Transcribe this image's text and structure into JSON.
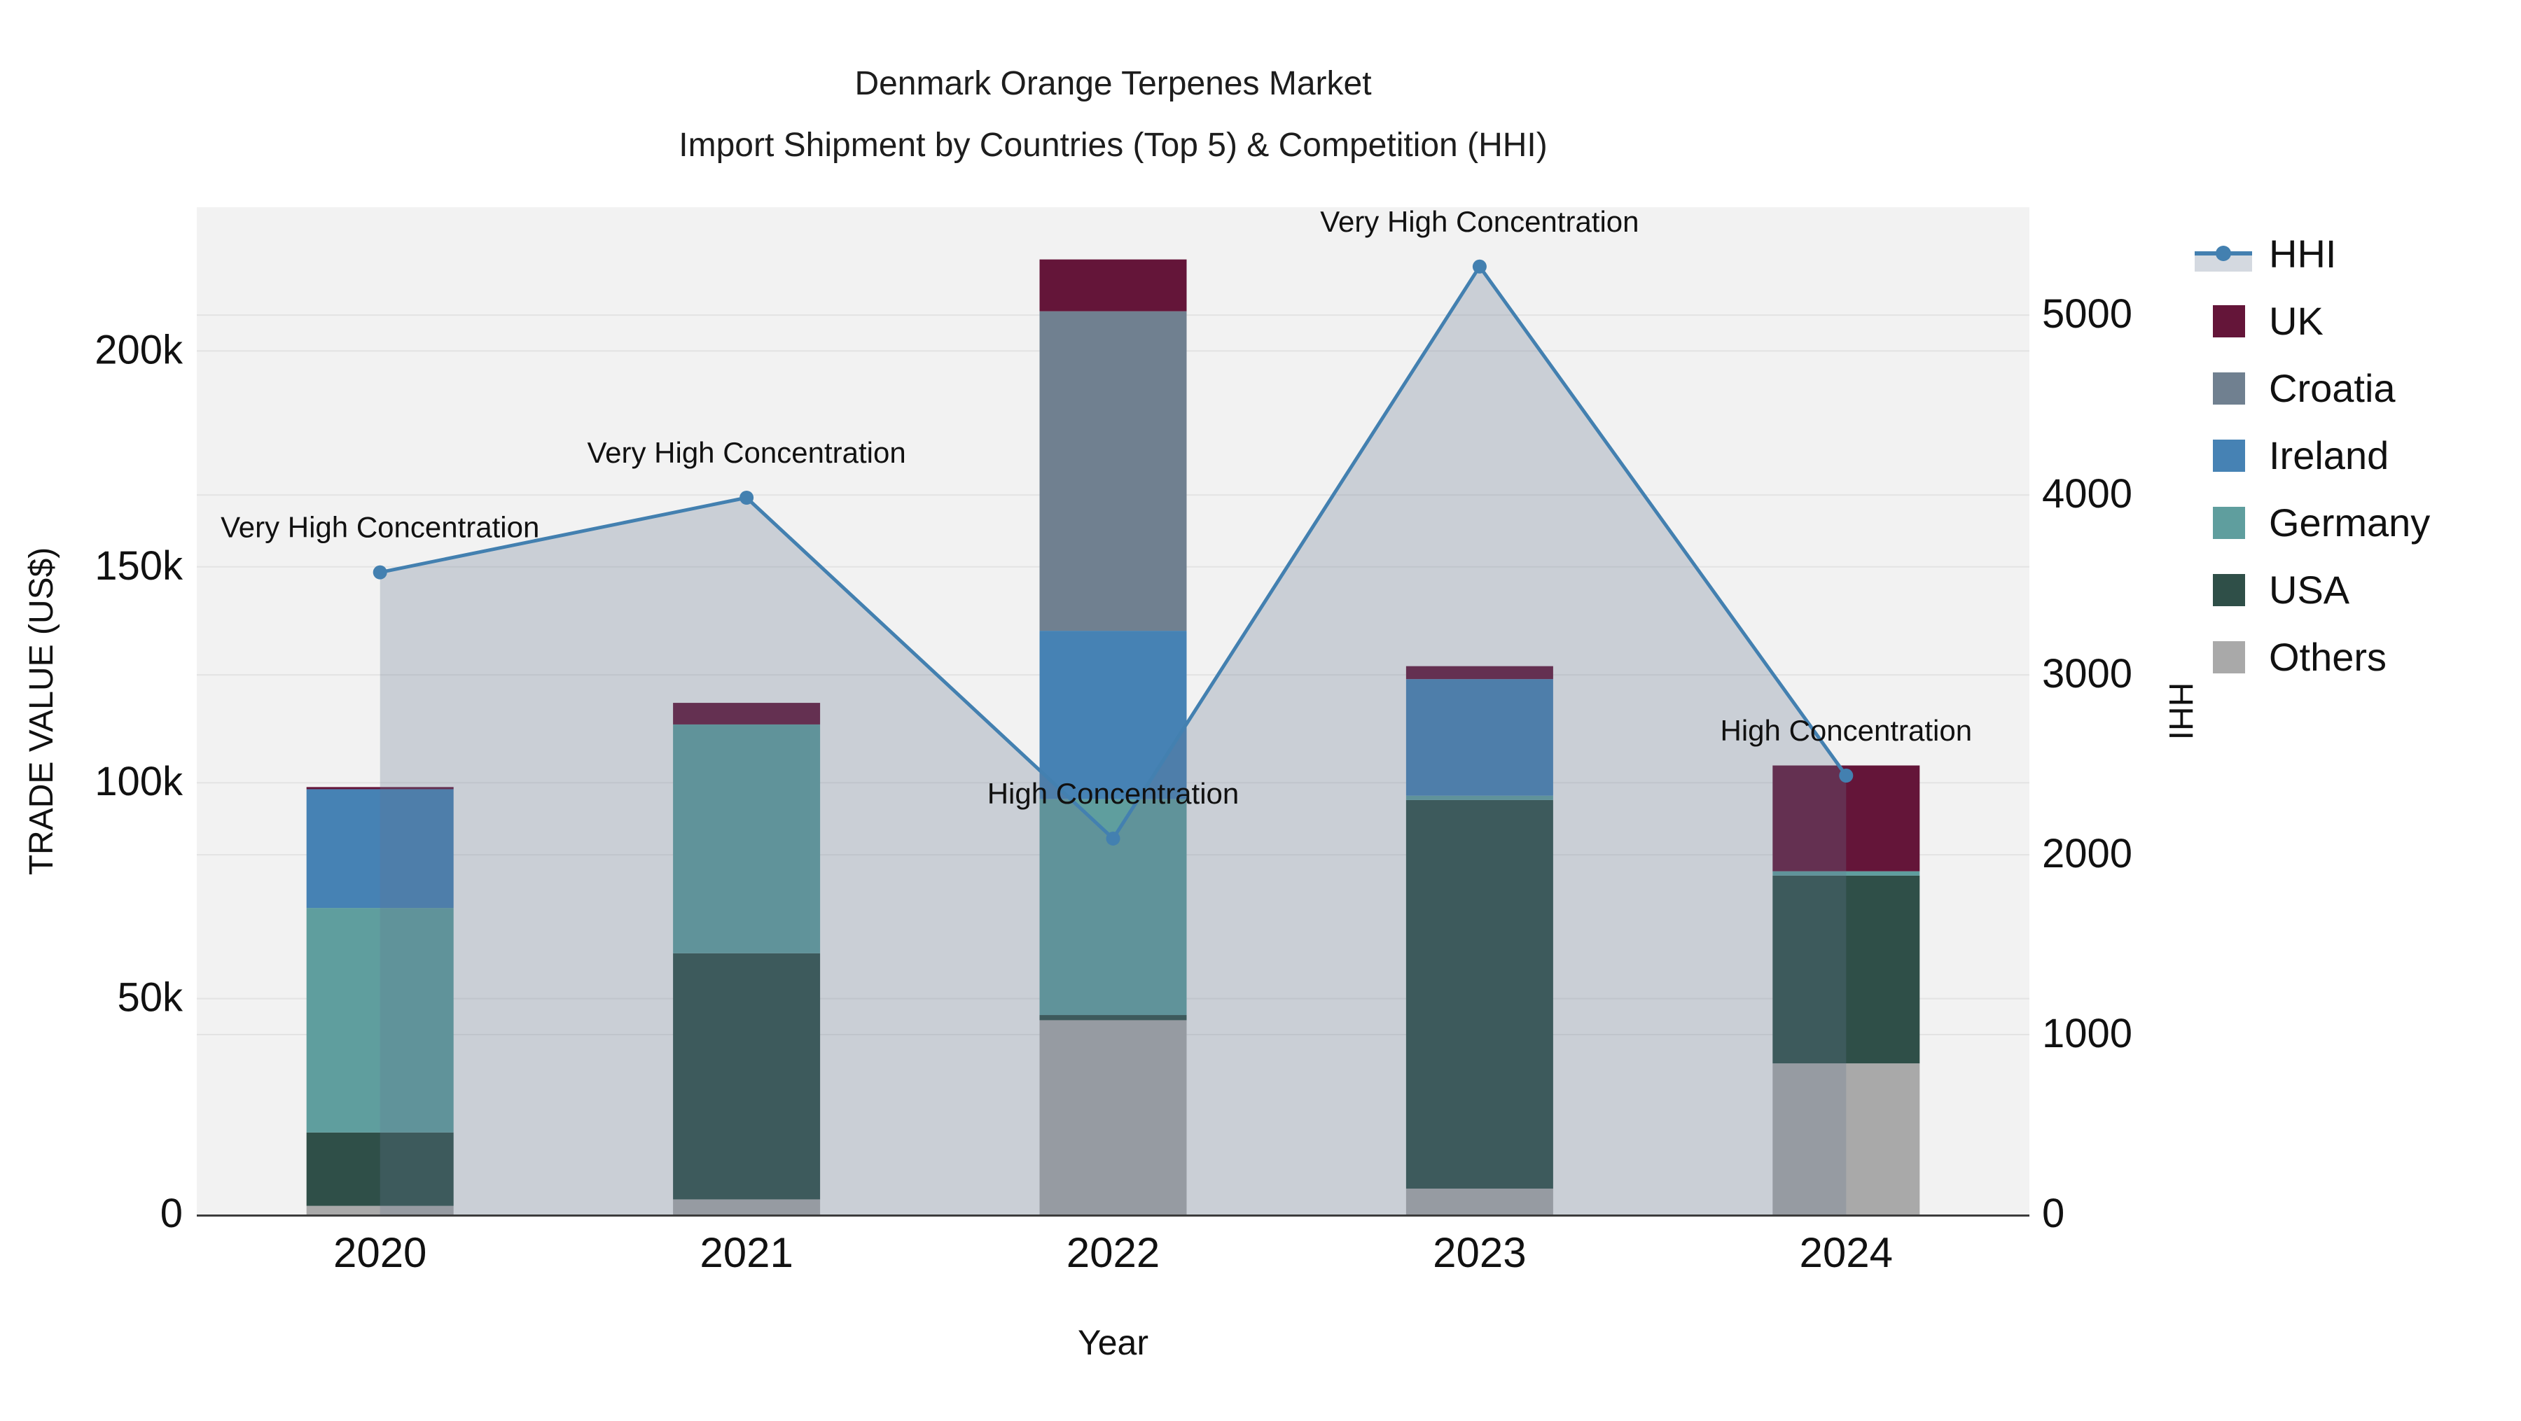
{
  "title": {
    "line1": "Denmark Orange Terpenes Market",
    "line2": "Import Shipment by Countries (Top 5) & Competition (HHI)"
  },
  "axes": {
    "x": {
      "title": "Year"
    },
    "y_left": {
      "title": "TRADE VALUE (US$)",
      "tick_labels": [
        "0",
        "50k",
        "100k",
        "150k",
        "200k"
      ],
      "tick_values": [
        0,
        50000,
        100000,
        150000,
        200000
      ],
      "max": 233300
    },
    "y_right": {
      "title": "HHI",
      "tick_labels": [
        "0",
        "1000",
        "2000",
        "3000",
        "4000",
        "5000"
      ],
      "tick_values": [
        0,
        1000,
        2000,
        3000,
        4000,
        5000
      ],
      "max": 5600
    }
  },
  "chart_data": {
    "type": "bar",
    "subtype": "stacked-bar-with-line",
    "title": "Denmark Orange Terpenes Market — Import Shipment by Countries (Top 5) & Competition (HHI)",
    "xlabel": "Year",
    "ylabel_left": "TRADE VALUE (US$)",
    "ylabel_right": "HHI",
    "ylim_left": [
      0,
      233300
    ],
    "ylim_right": [
      0,
      5600
    ],
    "grid": true,
    "legend_position": "right",
    "categories": [
      "2020",
      "2021",
      "2022",
      "2023",
      "2024"
    ],
    "bar_series": [
      {
        "name": "Others",
        "color": "#A9A9A9",
        "values": [
          2000,
          3500,
          45000,
          6000,
          35000
        ]
      },
      {
        "name": "USA",
        "color": "#2F4F48",
        "values": [
          17000,
          57000,
          1200,
          90000,
          43500
        ]
      },
      {
        "name": "Germany",
        "color": "#5F9E9E",
        "values": [
          52000,
          53000,
          50000,
          1000,
          1000
        ]
      },
      {
        "name": "Ireland",
        "color": "#4682B4",
        "values": [
          27500,
          0,
          39000,
          27000,
          0
        ]
      },
      {
        "name": "Croatia",
        "color": "#708090",
        "values": [
          0,
          0,
          74000,
          0,
          0
        ]
      },
      {
        "name": "UK",
        "color": "#641539",
        "values": [
          500,
          5000,
          12000,
          3000,
          24500
        ]
      }
    ],
    "bar_totals": [
      99000,
      118500,
      221200,
      127000,
      104000
    ],
    "line_series": {
      "name": "HHI",
      "color": "#4380B0",
      "fill_color": "rgba(100,120,145,0.28)",
      "values": [
        3570,
        3985,
        2090,
        5270,
        2440
      ]
    },
    "annotations": [
      {
        "year": "2020",
        "text": "Very High Concentration"
      },
      {
        "year": "2021",
        "text": "Very High Concentration"
      },
      {
        "year": "2022",
        "text": "High Concentration"
      },
      {
        "year": "2023",
        "text": "Very High Concentration"
      },
      {
        "year": "2024",
        "text": "High Concentration"
      }
    ]
  },
  "legend": {
    "order": [
      "HHI",
      "UK",
      "Croatia",
      "Ireland",
      "Germany",
      "USA",
      "Others"
    ]
  },
  "style": {
    "plot_bg": "#F2F2F2",
    "grid_color": "#E3E3E3",
    "axis_line_color": "#3C3C3C",
    "text_color": "#111111"
  }
}
